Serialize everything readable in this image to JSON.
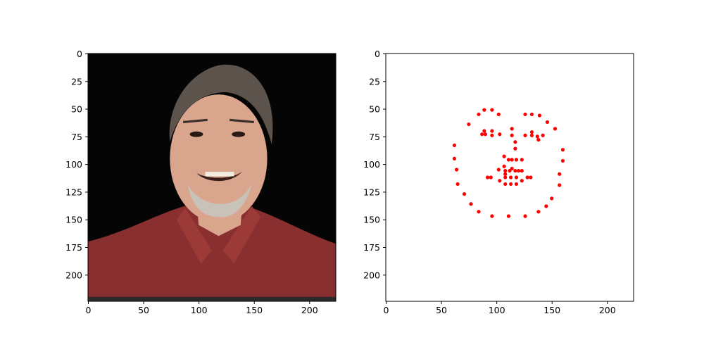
{
  "figure": {
    "background": "#ffffff"
  },
  "chart_data": [
    {
      "type": "image",
      "title": "",
      "image_description_name": "face-photo",
      "xlim": [
        0,
        224
      ],
      "ylim": [
        224,
        0
      ],
      "xticks": [
        0,
        50,
        100,
        150,
        200
      ],
      "yticks": [
        0,
        25,
        50,
        75,
        100,
        125,
        150,
        175,
        200
      ],
      "xtick_labels": [
        "0",
        "50",
        "100",
        "150",
        "200"
      ],
      "ytick_labels": [
        "0",
        "25",
        "50",
        "75",
        "100",
        "125",
        "150",
        "175",
        "200"
      ]
    },
    {
      "type": "scatter",
      "title": "",
      "marker_color": "#ff0000",
      "xlim": [
        0,
        224
      ],
      "ylim": [
        224,
        0
      ],
      "xticks": [
        0,
        50,
        100,
        150,
        200
      ],
      "yticks": [
        0,
        25,
        50,
        75,
        100,
        125,
        150,
        175,
        200
      ],
      "xtick_labels": [
        "0",
        "50",
        "100",
        "150",
        "200"
      ],
      "ytick_labels": [
        "0",
        "25",
        "50",
        "75",
        "100",
        "125",
        "150",
        "175",
        "200"
      ],
      "points": [
        [
          62,
          83
        ],
        [
          62,
          95
        ],
        [
          64,
          105
        ],
        [
          65,
          118
        ],
        [
          71,
          127
        ],
        [
          77,
          136
        ],
        [
          84,
          143
        ],
        [
          96,
          147
        ],
        [
          111,
          147
        ],
        [
          126,
          147
        ],
        [
          138,
          143
        ],
        [
          145,
          138
        ],
        [
          150,
          131
        ],
        [
          157,
          119
        ],
        [
          157,
          109
        ],
        [
          160,
          97
        ],
        [
          160,
          87
        ],
        [
          75,
          64
        ],
        [
          84,
          55
        ],
        [
          89,
          51
        ],
        [
          96,
          51
        ],
        [
          102,
          55
        ],
        [
          126,
          55
        ],
        [
          132,
          55
        ],
        [
          139,
          56
        ],
        [
          146,
          62
        ],
        [
          153,
          68
        ],
        [
          114,
          68
        ],
        [
          114,
          74
        ],
        [
          117,
          80
        ],
        [
          117,
          86
        ],
        [
          107,
          93
        ],
        [
          111,
          96
        ],
        [
          114,
          96
        ],
        [
          118,
          96
        ],
        [
          123,
          96
        ],
        [
          87,
          73
        ],
        [
          89,
          70
        ],
        [
          90,
          73
        ],
        [
          96,
          70
        ],
        [
          96,
          74
        ],
        [
          103,
          73
        ],
        [
          126,
          74
        ],
        [
          132,
          71
        ],
        [
          132,
          74
        ],
        [
          137,
          75
        ],
        [
          138,
          78
        ],
        [
          142,
          74
        ],
        [
          92,
          112
        ],
        [
          95,
          112
        ],
        [
          102,
          105
        ],
        [
          107,
          102
        ],
        [
          108,
          106
        ],
        [
          112,
          106
        ],
        [
          114,
          104
        ],
        [
          117,
          106
        ],
        [
          120,
          106
        ],
        [
          123,
          106
        ],
        [
          128,
          112
        ],
        [
          131,
          112
        ],
        [
          108,
          109
        ],
        [
          108,
          112
        ],
        [
          113,
          112
        ],
        [
          118,
          112
        ],
        [
          103,
          115
        ],
        [
          108,
          118
        ],
        [
          113,
          118
        ],
        [
          118,
          118
        ],
        [
          123,
          115
        ]
      ]
    }
  ]
}
